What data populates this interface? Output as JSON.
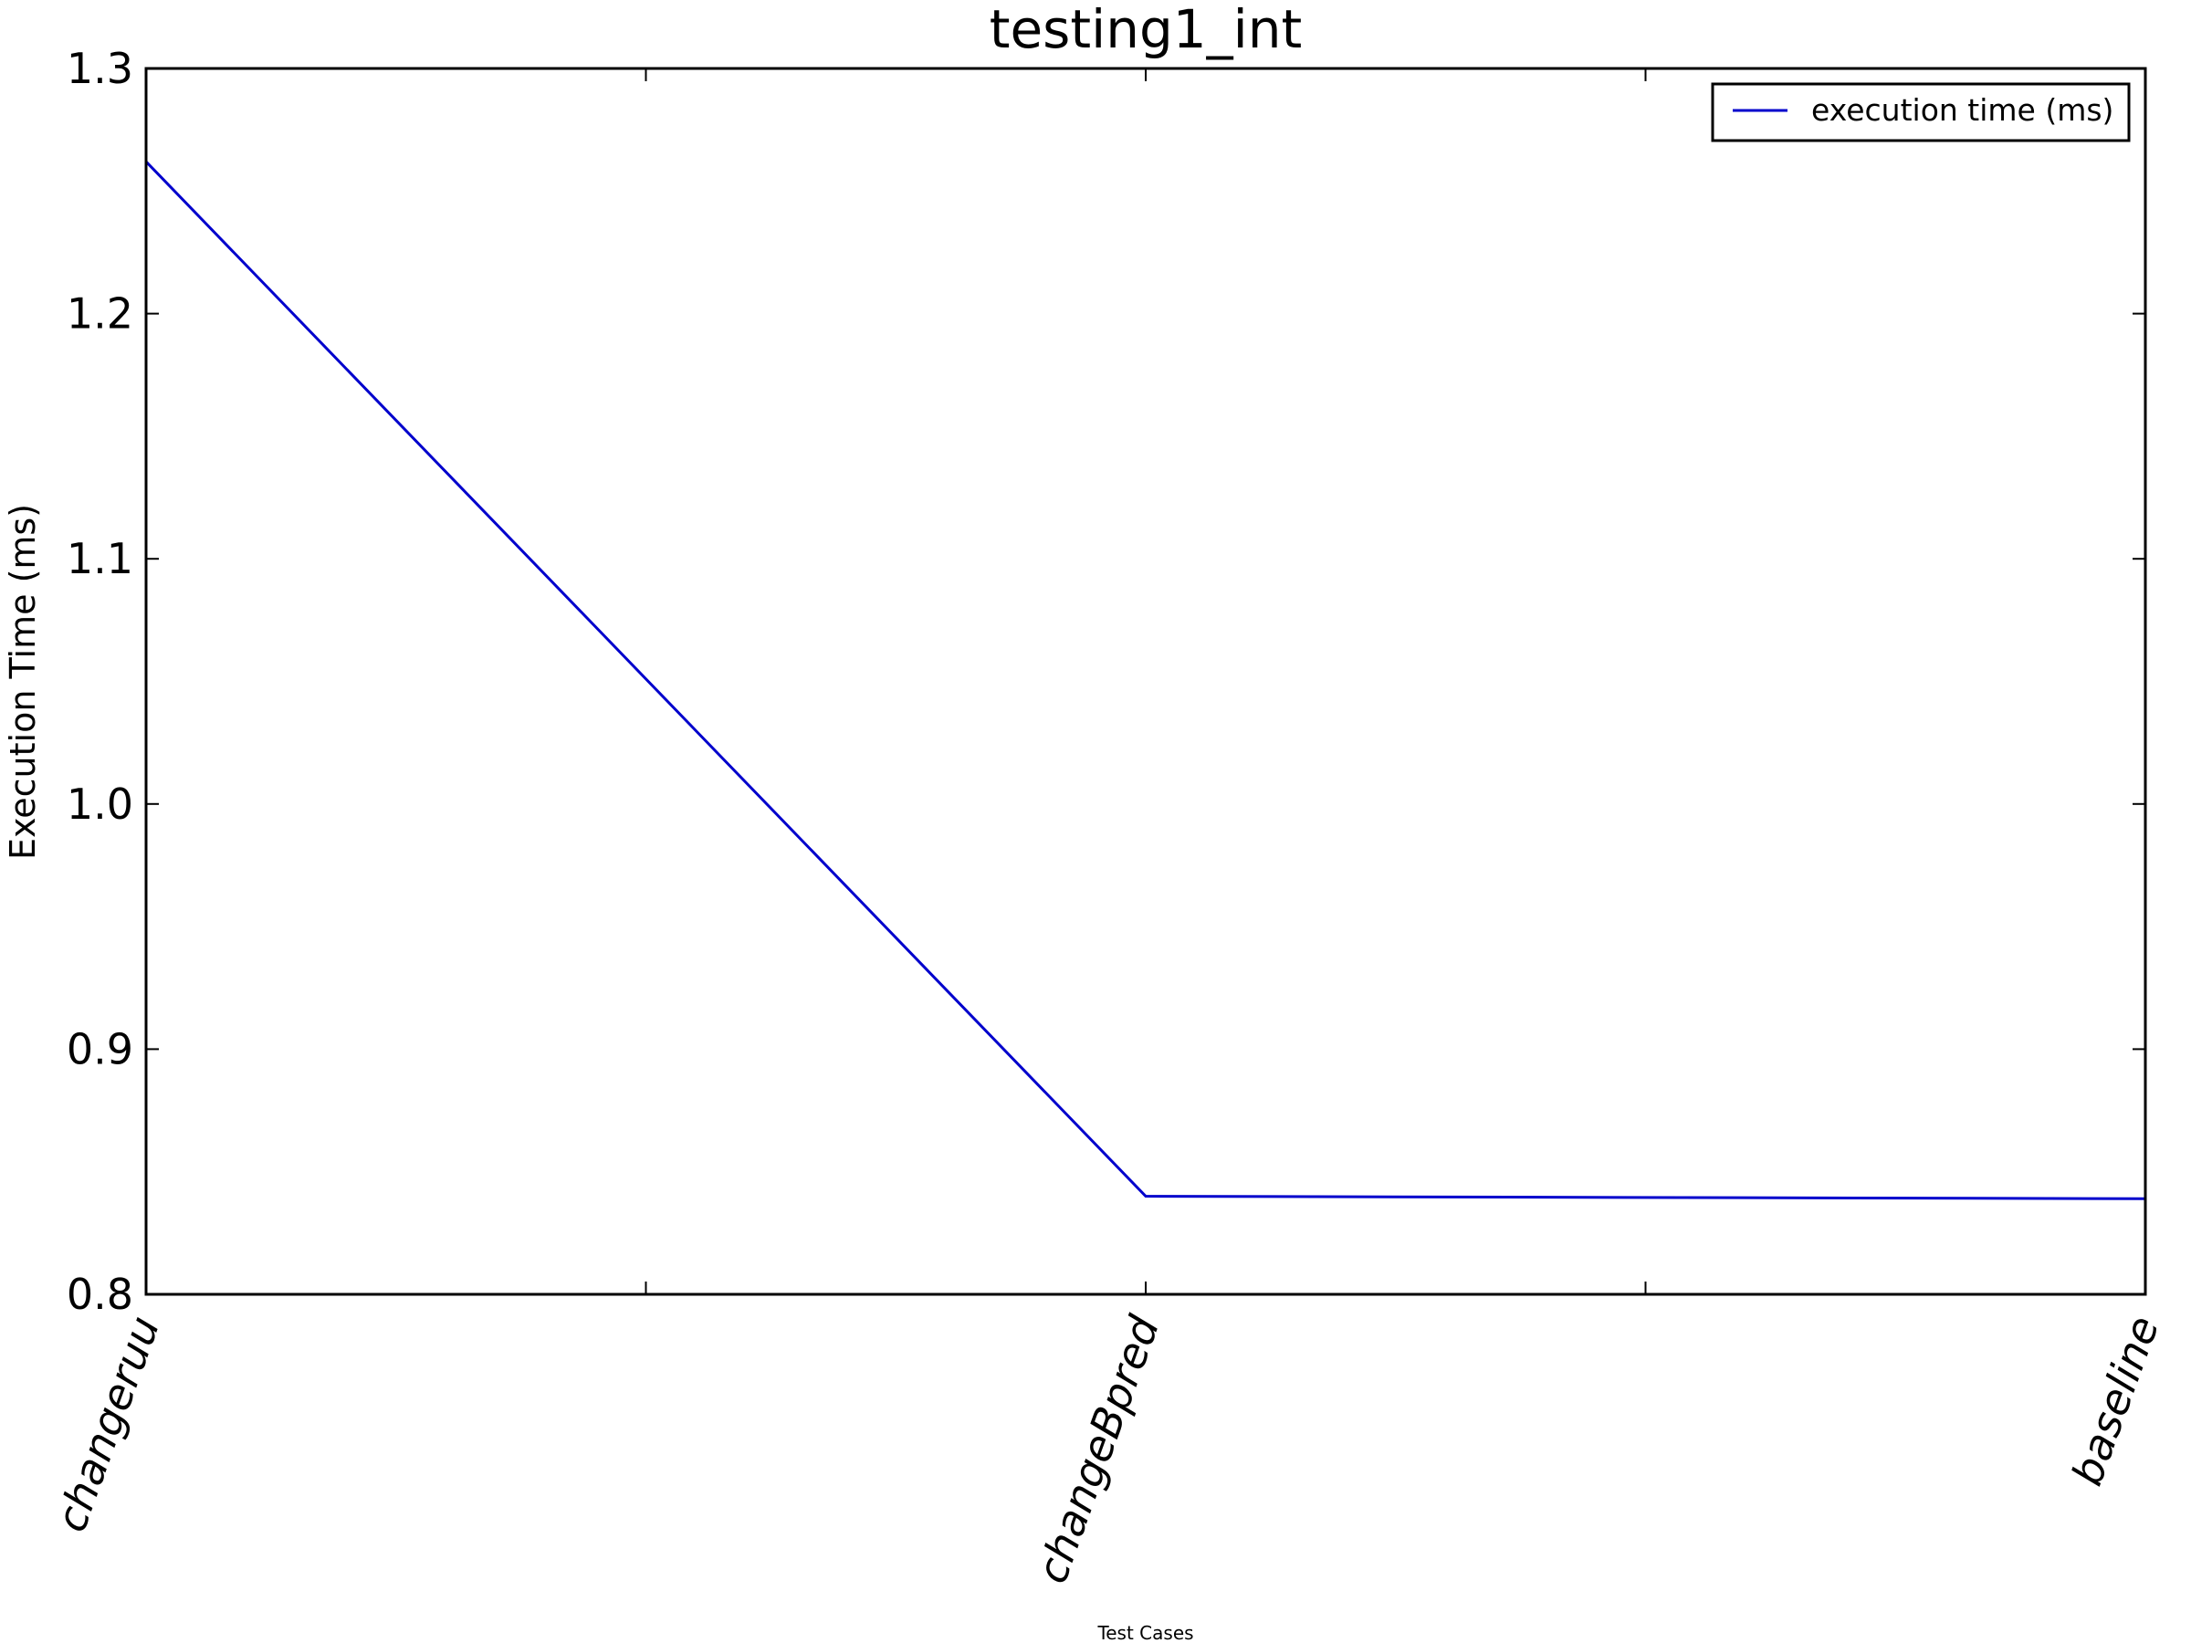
{
  "chart_data": {
    "type": "line",
    "title": "testing1_int",
    "xlabel": "Test Cases",
    "ylabel": "Execution Time (ms)",
    "categories": [
      "changeruu",
      "changeBpred",
      "baseline"
    ],
    "series": [
      {
        "name": "execution time (ms)",
        "values": [
          1.262,
          0.84,
          0.839
        ],
        "color": "#0000cc"
      }
    ],
    "ylim": [
      0.8,
      1.3
    ],
    "yticks": [
      "0.8",
      "0.9",
      "1.0",
      "1.1",
      "1.2",
      "1.3"
    ],
    "grid": false,
    "legend_position": "top-right"
  }
}
